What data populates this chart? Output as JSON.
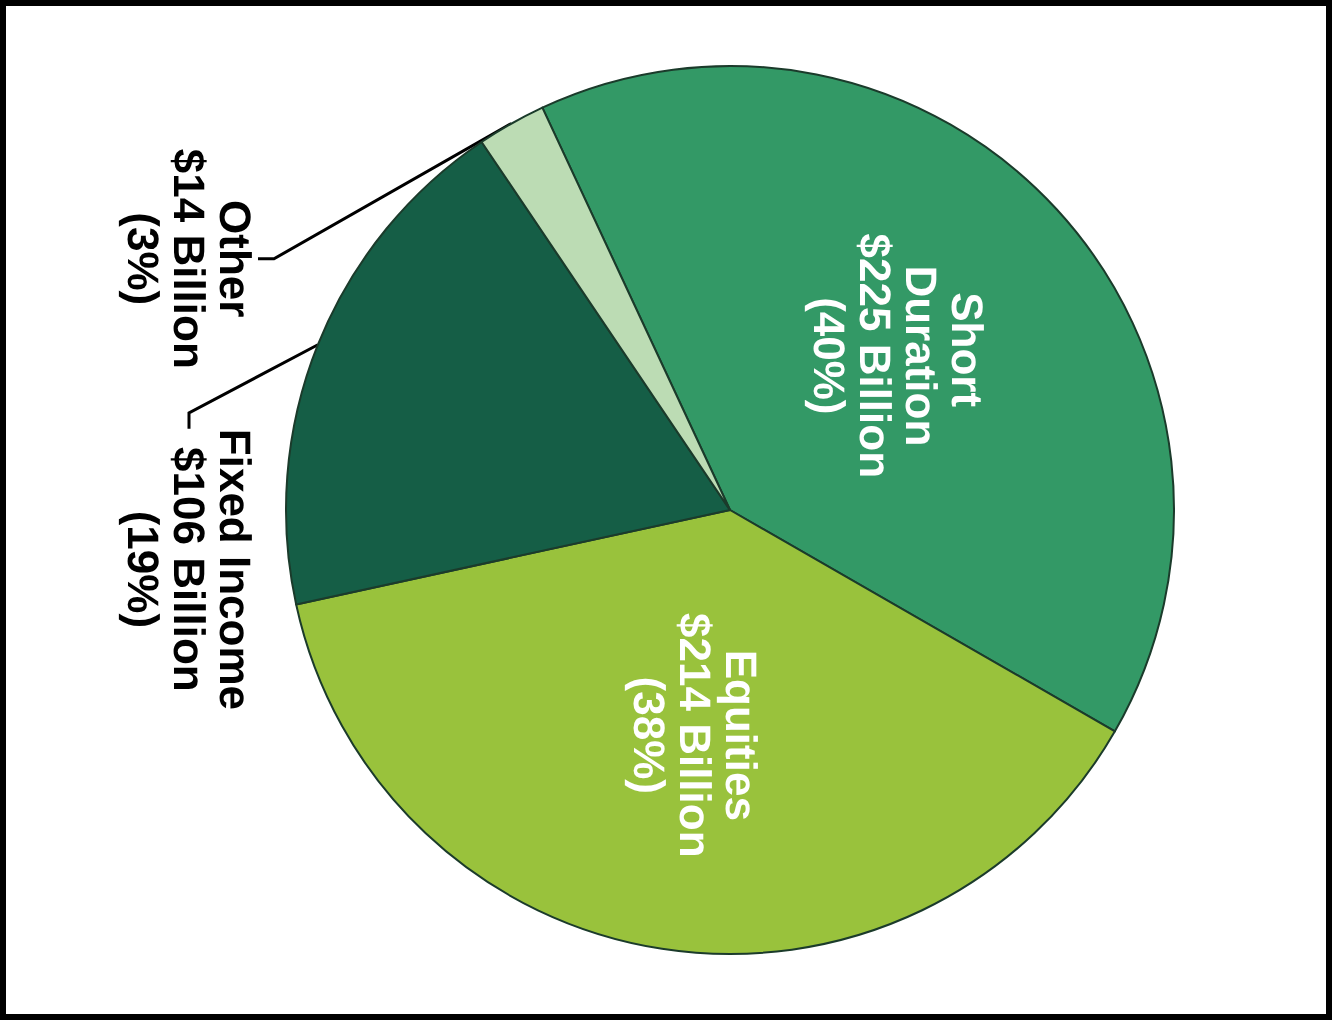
{
  "chart_data": {
    "type": "pie",
    "categories": [
      "Short Duration",
      "Equities",
      "Fixed Income",
      "Other"
    ],
    "values": [
      225,
      214,
      106,
      14
    ],
    "value_labels": [
      "$225 Billion (40%)",
      "$214 Billion (38%)",
      "$106 Billion (19%)",
      "$14 Billion (3%)"
    ],
    "colors": [
      "#339966",
      "#99c23c",
      "#155e46",
      "#bcdcb4"
    ]
  }
}
